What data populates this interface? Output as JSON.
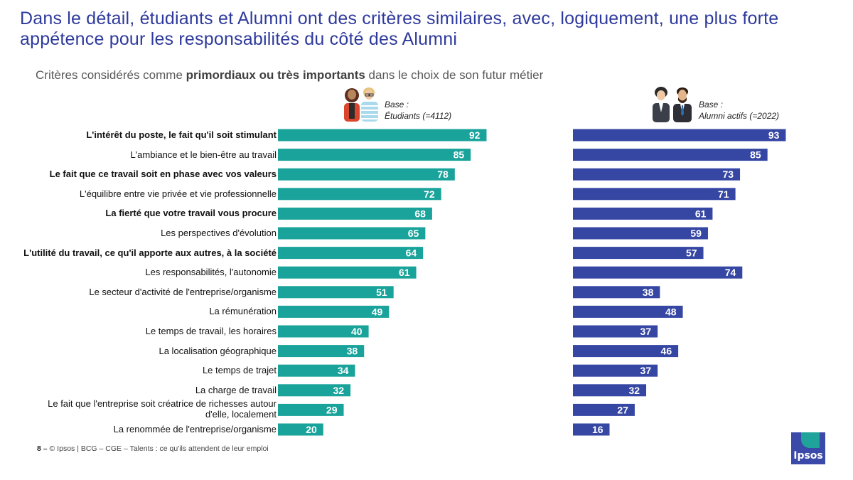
{
  "title": "Dans le détail, étudiants et Alumni ont des critères similaires, avec, logiquement, une plus forte appétence pour les responsabilités du côté des Alumni",
  "subtitle": {
    "pre": "Critères considérés comme ",
    "bold": "primordiaux ou très importants",
    "post": " dans le choix de son futur métier"
  },
  "panels": {
    "students": {
      "base_line1": "Base :",
      "base_line2": "Étudiants (=4112)",
      "color": "#1aa39a"
    },
    "alumni": {
      "base_line1": "Base :",
      "base_line2": "Alumni actifs (=2022)",
      "color": "#3647a3"
    }
  },
  "chart_data": {
    "type": "bar",
    "orientation": "horizontal",
    "categories": [
      "L'intérêt du poste, le fait qu'il soit stimulant",
      "L'ambiance et le bien-être au travail",
      "Le fait que ce travail soit en phase avec vos valeurs",
      "L'équilibre entre vie privée et vie professionnelle",
      "La fierté que votre travail vous procure",
      "Les perspectives d'évolution",
      "L'utilité du travail, ce qu'il apporte aux autres, à la société",
      "Les responsabilités, l'autonomie",
      "Le secteur d'activité de l'entreprise/organisme",
      "La rémunération",
      "Le temps de travail, les horaires",
      "La localisation géographique",
      "Le temps de trajet",
      "La charge de travail",
      "Le fait que l'entreprise soit créatrice de richesses autour d'elle, localement",
      "La renommée de l'entreprise/organisme"
    ],
    "bold_categories": [
      0,
      2,
      4,
      6
    ],
    "series": [
      {
        "name": "Étudiants (=4112)",
        "values": [
          92,
          85,
          78,
          72,
          68,
          65,
          64,
          61,
          51,
          49,
          40,
          38,
          34,
          32,
          29,
          20
        ]
      },
      {
        "name": "Alumni actifs (=2022)",
        "values": [
          93,
          85,
          73,
          71,
          61,
          59,
          57,
          74,
          38,
          48,
          37,
          46,
          37,
          32,
          27,
          16
        ]
      }
    ],
    "xlim": [
      0,
      100
    ]
  },
  "footer": {
    "page": "8 –",
    "text": "© Ipsos | BCG – CGE – Talents : ce qu'ils attendent de leur emploi"
  },
  "logo": {
    "text": "Ipsos"
  },
  "colors": {
    "title": "#2e3a9c",
    "students": "#1aa39a",
    "alumni": "#3647a3"
  }
}
